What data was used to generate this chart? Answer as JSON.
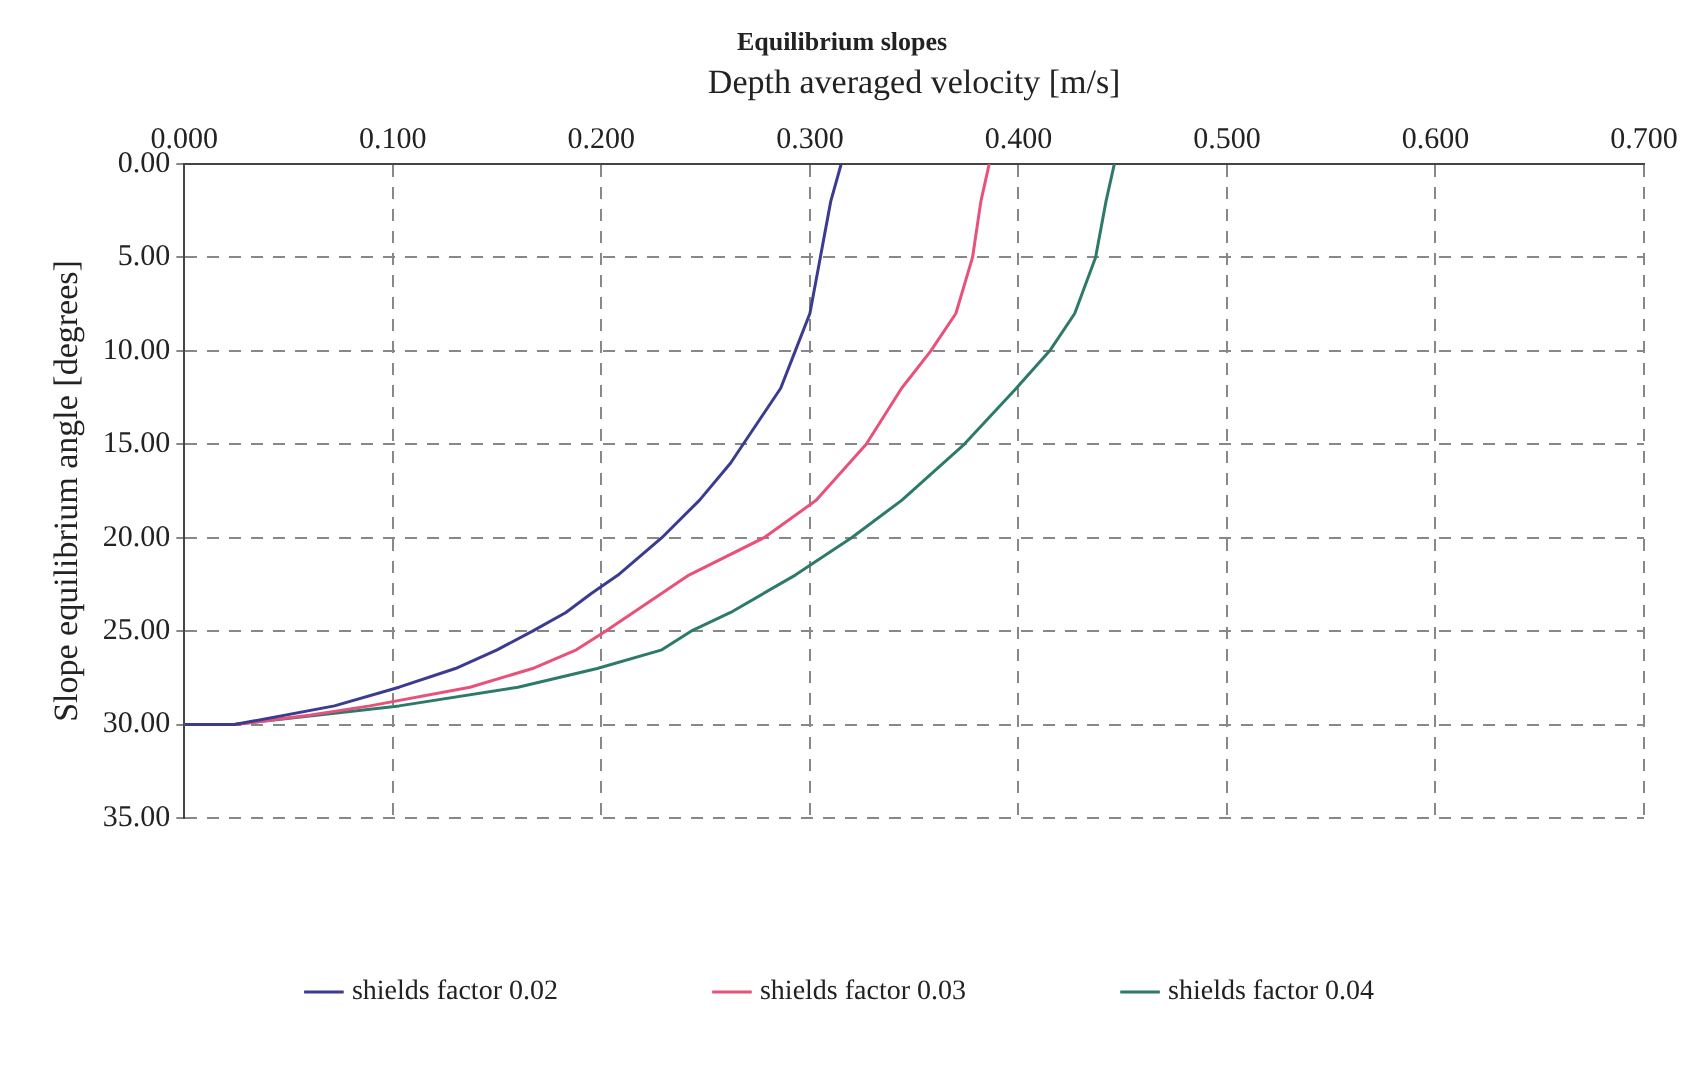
{
  "chart_data": {
    "type": "line",
    "title": "Equilibrium slopes",
    "xlabel": "Depth averaged velocity [m/s]",
    "ylabel": "Slope equilibrium angle [degrees]",
    "xlim": [
      0,
      0.7
    ],
    "xticks": [
      {
        "value": 0,
        "label": "0.000"
      },
      {
        "value": 0.1,
        "label": "0.100"
      },
      {
        "value": 0.2,
        "label": "0.200"
      },
      {
        "value": 0.3,
        "label": "0.300"
      },
      {
        "value": 0.4,
        "label": "0.400"
      },
      {
        "value": 0.5,
        "label": "0.500"
      },
      {
        "value": 0.6,
        "label": "0.600"
      },
      {
        "value": 0.7,
        "label": "0.700"
      }
    ],
    "ylim": [
      35,
      0
    ],
    "yticks": [
      {
        "value": 0,
        "label": "0.00"
      },
      {
        "value": 5,
        "label": "5.00"
      },
      {
        "value": 10,
        "label": "10.00"
      },
      {
        "value": 15,
        "label": "15.00"
      },
      {
        "value": 20,
        "label": "20.00"
      },
      {
        "value": 25,
        "label": "25.00"
      },
      {
        "value": 30,
        "label": "30.00"
      },
      {
        "value": 35,
        "label": "35.00"
      }
    ],
    "grid": true,
    "legend": "bottom",
    "marker": "none",
    "line_style": "solid",
    "series": [
      {
        "name": "shields factor 0.02",
        "color": "#3b3b8f",
        "x": [
          0,
          0.024,
          0.072,
          0.103,
          0.13,
          0.15,
          0.167,
          0.183,
          0.195,
          0.208,
          0.229,
          0.247,
          0.262,
          0.268,
          0.286,
          0.293,
          0.3,
          0.305,
          0.31,
          0.315
        ],
        "values": [
          30,
          30,
          29,
          28,
          27,
          26,
          25,
          24,
          23,
          22,
          20,
          18,
          16,
          15,
          12,
          10,
          8,
          5,
          2,
          0
        ]
      },
      {
        "name": "shields factor 0.03",
        "color": "#e8517a",
        "x": [
          0,
          0.024,
          0.06,
          0.089,
          0.137,
          0.167,
          0.188,
          0.202,
          0.242,
          0.278,
          0.303,
          0.327,
          0.344,
          0.358,
          0.37,
          0.378,
          0.382,
          0.386
        ],
        "values": [
          30,
          30,
          29.5,
          29,
          28,
          27,
          26,
          25,
          22,
          20,
          18,
          15,
          12,
          10,
          8,
          5,
          2,
          0
        ]
      },
      {
        "name": "shields factor 0.04",
        "color": "#2e7a6a",
        "x": [
          0,
          0.024,
          0.103,
          0.16,
          0.198,
          0.229,
          0.243,
          0.262,
          0.293,
          0.32,
          0.344,
          0.374,
          0.399,
          0.415,
          0.427,
          0.437,
          0.442,
          0.446
        ],
        "values": [
          30,
          30,
          29,
          28,
          27,
          26,
          25,
          24,
          22,
          20,
          18,
          15,
          12,
          10,
          8,
          5,
          2,
          0
        ]
      }
    ]
  }
}
